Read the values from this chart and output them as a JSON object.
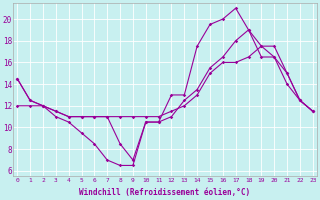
{
  "xlabel": "Windchill (Refroidissement éolien,°C)",
  "bg_color": "#c8f0f0",
  "grid_color": "#ffffff",
  "line_color": "#990099",
  "line1_y": [
    14.5,
    12.5,
    12.0,
    11.0,
    10.5,
    9.5,
    8.5,
    7.0,
    6.5,
    6.5,
    10.5,
    10.5,
    13.0,
    13.0,
    17.5,
    19.5,
    20.0,
    21.0,
    19.0,
    17.5,
    16.5,
    15.0,
    12.5,
    11.5
  ],
  "line2_y": [
    14.5,
    12.5,
    12.0,
    11.5,
    11.0,
    11.0,
    11.0,
    11.0,
    11.0,
    11.0,
    11.0,
    11.0,
    11.5,
    12.0,
    13.0,
    15.0,
    16.0,
    16.0,
    16.5,
    17.5,
    17.5,
    15.0,
    12.5,
    11.5
  ],
  "line3_y": [
    12.0,
    12.0,
    12.0,
    11.5,
    11.0,
    11.0,
    11.0,
    11.0,
    8.5,
    7.0,
    10.5,
    10.5,
    11.0,
    12.5,
    13.5,
    15.5,
    16.5,
    18.0,
    19.0,
    16.5,
    16.5,
    14.0,
    12.5,
    11.5
  ],
  "yticks": [
    6,
    8,
    10,
    12,
    14,
    16,
    18,
    20
  ],
  "xticks": [
    0,
    1,
    2,
    3,
    4,
    5,
    6,
    7,
    8,
    9,
    10,
    11,
    12,
    13,
    14,
    15,
    16,
    17,
    18,
    19,
    20,
    21,
    22,
    23
  ]
}
